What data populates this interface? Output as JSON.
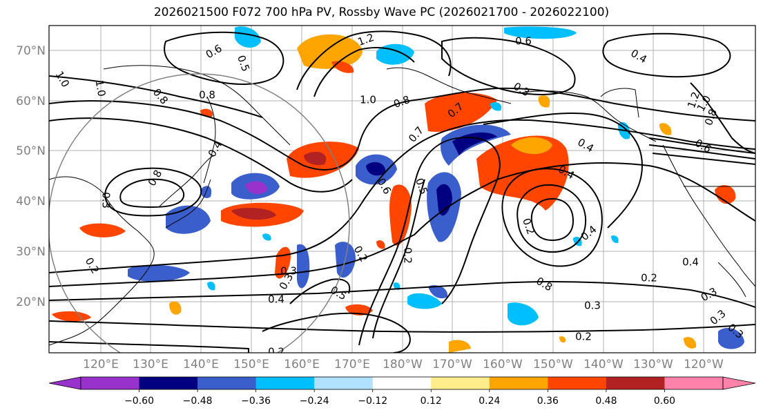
{
  "title": "2026021500 F072 700 hPa PV, Rossby Wave PC (2026021700 - 2026022100)",
  "lat_labels": [
    "70°N",
    "60°N",
    "50°N",
    "40°N",
    "30°N",
    "20°N"
  ],
  "lon_labels": [
    "120°E",
    "130°E",
    "140°E",
    "150°E",
    "160°E",
    "170°E",
    "180°W",
    "170°W",
    "160°W",
    "150°W",
    "140°W",
    "130°W",
    "120°W"
  ],
  "colorbar": {
    "colors": [
      "#9932cc",
      "#000080",
      "#3a5fcd",
      "#00bfff",
      "#b0e2ff",
      "#ffffff",
      "#ffec8b",
      "#ffa500",
      "#ff4500",
      "#b22222",
      "#ff82ab"
    ],
    "ticks": [
      "−0.60",
      "−0.48",
      "−0.36",
      "−0.24",
      "−0.12",
      "0.12",
      "0.24",
      "0.36",
      "0.48",
      "0.60"
    ]
  },
  "contour_labels": [
    "1.2",
    "0.6",
    "0.5",
    "0.6",
    "0.4",
    "1.2",
    "1.0",
    "0.8",
    "0.7",
    "0.3",
    "0.8",
    "0.4",
    "0.8",
    "0.2",
    "0.3",
    "0.4",
    "0.5",
    "0.7",
    "0.6",
    "0.5",
    "0.2",
    "0.4",
    "0.4",
    "0.2",
    "0.3",
    "0.8",
    "0.4",
    "0.2",
    "0.3",
    "0.3",
    "0.3",
    "0.4",
    "0.3",
    "0.2",
    "0.2",
    "0.3",
    "0.2",
    "0.8",
    "1.0",
    "1.0",
    "1.0",
    "0.8",
    "0.6"
  ],
  "colors": {
    "contour": "#000000",
    "grid": "#b0b0b0",
    "label_gray": "#808080"
  }
}
